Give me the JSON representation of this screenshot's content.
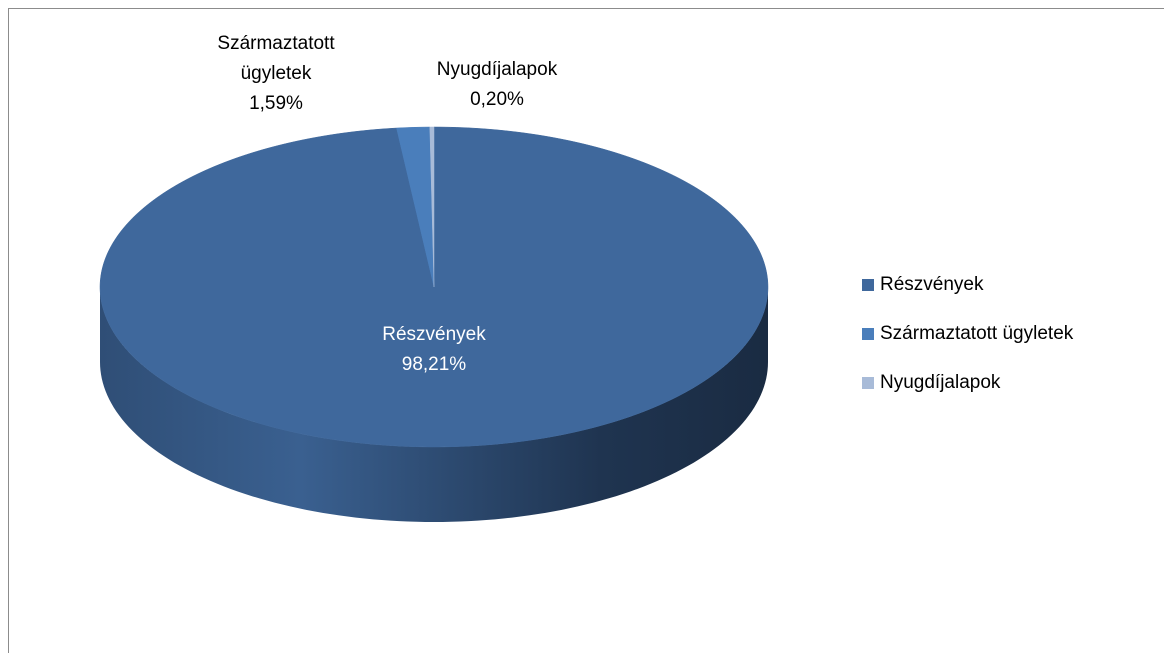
{
  "chart_data": {
    "type": "pie",
    "categories": [
      "Részvények",
      "Származtatott ügyletek",
      "Nyugdíjalapok"
    ],
    "values": [
      98.21,
      1.59,
      0.2
    ],
    "value_labels": [
      "98,21%",
      "1,59%",
      "0,20%"
    ],
    "colors": [
      "#3f689c",
      "#4a7ebb",
      "#a8bbd8"
    ],
    "legend": "right"
  }
}
